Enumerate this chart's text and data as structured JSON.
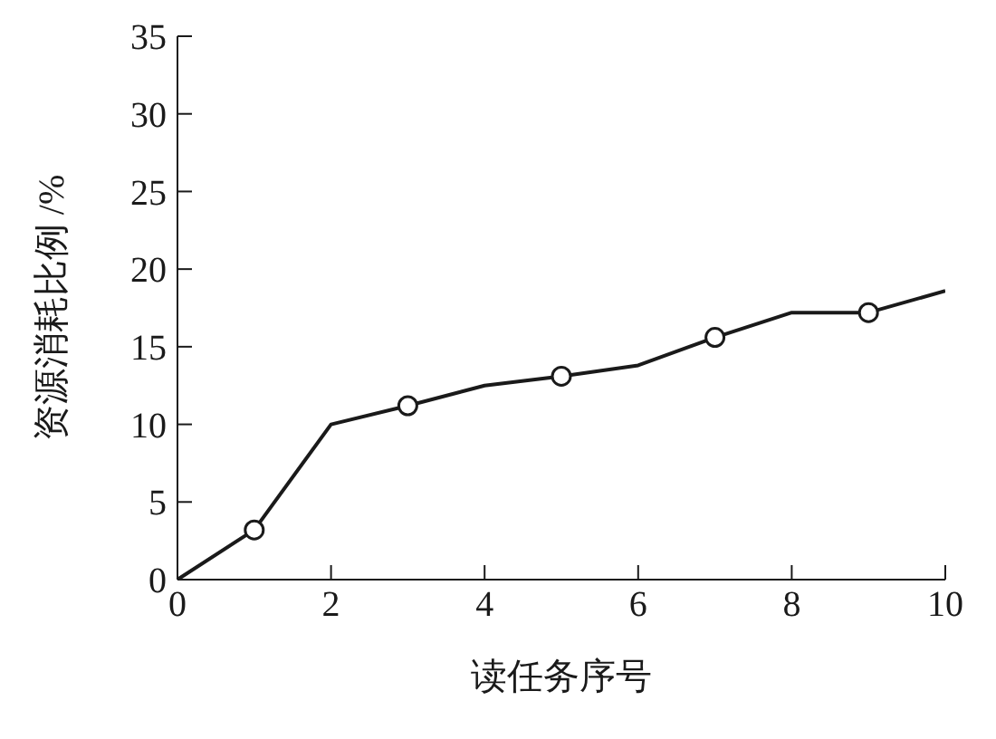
{
  "chart_data": {
    "type": "line",
    "xlabel": "读任务序号",
    "ylabel": "资源消耗比例 /%",
    "xlim": [
      0,
      10
    ],
    "xticks": [
      0,
      2,
      4,
      6,
      8,
      10
    ],
    "ylim": [
      0,
      35
    ],
    "yticks": [
      0,
      5,
      10,
      15,
      20,
      25,
      30,
      35
    ],
    "line_style": "solid",
    "series": [
      {
        "color": "#1a1a1a",
        "marker": "none",
        "x": [
          0,
          1,
          2,
          3,
          4,
          5,
          6,
          7,
          8,
          9,
          10
        ],
        "values": [
          0,
          3.2,
          10,
          11.2,
          12.5,
          13.1,
          13.8,
          15.6,
          17.2,
          17.2,
          18.6
        ]
      },
      {
        "type": "scatter",
        "color": "#1a1a1a",
        "marker": "circle",
        "x": [
          1,
          3,
          5,
          7,
          9
        ],
        "values": [
          3.2,
          11.2,
          13.1,
          15.6,
          17.2
        ]
      }
    ]
  }
}
